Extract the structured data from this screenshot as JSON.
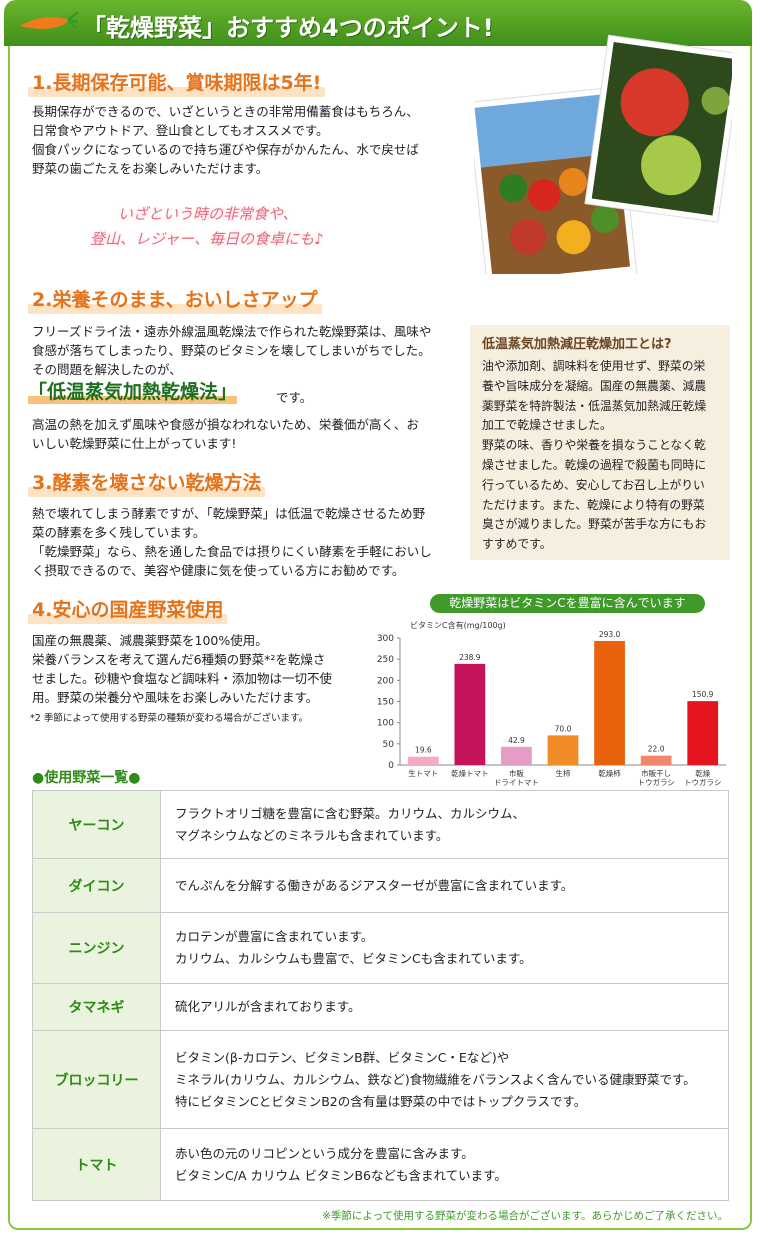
{
  "header": {
    "title": "「乾燥野菜」おすすめ4つのポイント!"
  },
  "sections": [
    {
      "heading": "1.長期保存可能、賞味期限は5年!",
      "lines": [
        "長期保存ができるので、いざというときの非常用備蓄食はもちろん、",
        "日常食やアウトドア、登山食としてもオススメです。",
        "個食パックになっているので持ち運びや保存がかんたん、水で戻せば",
        "野菜の歯ごたえをお楽しみいただけます。"
      ]
    },
    {
      "heading": "2.栄養そのまま、おいしさアップ",
      "lines": [
        "フリーズドライ法・遠赤外線温風乾燥法で作られた乾燥野菜は、風味や",
        "食感が落ちてしまったり、野菜のビタミンを壊してしまいがちでした。",
        "その問題を解決したのが、"
      ],
      "highlight": "「低温蒸気加熱乾燥法」",
      "highlight_suffix": "です。",
      "lines_after": [
        "高温の熱を加えず風味や食感が損なわれないため、栄養価が高く、お",
        "いしい乾燥野菜に仕上がっています!"
      ]
    },
    {
      "heading": "3.酵素を壊さない乾燥方法",
      "lines": [
        "熱で壊れてしまう酵素ですが、「乾燥野菜」は低温で乾燥させるため野",
        "菜の酵素を多く残しています。",
        "「乾燥野菜」なら、熱を通した食品では摂りにくい酵素を手軽においし",
        "く摂取できるので、美容や健康に気を使っている方にお勧めです。"
      ]
    },
    {
      "heading": "4.安心の国産野菜使用",
      "lines": [
        "国産の無農薬、減農薬野菜を100%使用。",
        "栄養バランスを考えて選んだ6種類の野菜*²を乾燥さ",
        "せました。砂糖や食塩など調味料・添加物は一切不使",
        "用。野菜の栄養分や風味をお楽しみいただけます。"
      ],
      "note": "*2 季節によって使用する野菜の種類が変わる場合がございます。"
    }
  ],
  "callout": {
    "lines": [
      "いざという時の非常食や、",
      "登山、レジャー、毎日の食卓にも♪"
    ]
  },
  "sidebar": {
    "title": "低温蒸気加熱減圧乾燥加工とは?",
    "lines": [
      "油や添加剤、調味料を使用せず、野菜の栄",
      "養や旨味成分を凝縮。国産の無農薬、減農",
      "薬野菜を特許製法・低温蒸気加熱減圧乾燥",
      "加工で乾燥させました。",
      "野菜の味、香りや栄養を損なうことなく乾",
      "燥させました。乾燥の過程で殺菌も同時に",
      "行っているため、安心してお召し上がりい",
      "ただけます。また、乾燥により特有の野菜",
      "臭さが減りました。野菜が苦手な方にもお",
      "すすめです。"
    ]
  },
  "chart_data": {
    "type": "bar",
    "title": "乾燥野菜はビタミンCを豊富に含んでいます",
    "y_label": "ビタミンC含有(mg/100g)",
    "categories": [
      "生トマト",
      "乾燥トマト",
      "市販\nドライトマト",
      "生柿",
      "乾燥柿",
      "市販干し\nトウガラシ",
      "乾燥\nトウガラシ"
    ],
    "values": [
      19.6,
      238.9,
      42.9,
      70.0,
      293.0,
      22.0,
      150.9
    ],
    "value_labels": [
      "19.6",
      "238.9",
      "42.9",
      "70.0",
      "293.0",
      "22.0",
      "150.9"
    ],
    "colors": [
      "#f5a9c4",
      "#c5135b",
      "#e59cc6",
      "#f08b26",
      "#e8620e",
      "#f2876b",
      "#e5141f"
    ],
    "ylim": [
      0,
      300
    ],
    "yticks": [
      0,
      50,
      100,
      150,
      200,
      250,
      300
    ],
    "grid": false
  },
  "vegetable_list": {
    "title": "●使用野菜一覧●",
    "rows": [
      {
        "name": "ヤーコン",
        "lines": [
          "フラクトオリゴ糖を豊富に含む野菜。カリウム、カルシウム、",
          "マグネシウムなどのミネラルも含まれています。"
        ]
      },
      {
        "name": "ダイコン",
        "lines": [
          "でんぷんを分解する働きがあるジアスターゼが豊富に含まれています。"
        ]
      },
      {
        "name": "ニンジン",
        "lines": [
          "カロテンが豊富に含まれています。",
          "カリウム、カルシウムも豊富で、ビタミンCも含まれています。"
        ]
      },
      {
        "name": "タマネギ",
        "lines": [
          "硫化アリルが含まれております。"
        ]
      },
      {
        "name": "ブロッコリー",
        "lines": [
          "ビタミン(β-カロテン、ビタミンB群、ビタミンC・Eなど)や",
          "ミネラル(カリウム、カルシウム、鉄など)食物繊維をバランスよく含んでいる健康野菜です。",
          "特にビタミンCとビタミンB2の含有量は野菜の中ではトップクラスです。"
        ]
      },
      {
        "name": "トマト",
        "lines": [
          "赤い色の元のリコピンという成分を豊富に含みます。",
          "ビタミンC/A カリウム ビタミンB6なども含まれています。"
        ]
      }
    ]
  },
  "footnote": "※季節によって使用する野菜が変わる場合がございます。あらかじめご了承ください。"
}
